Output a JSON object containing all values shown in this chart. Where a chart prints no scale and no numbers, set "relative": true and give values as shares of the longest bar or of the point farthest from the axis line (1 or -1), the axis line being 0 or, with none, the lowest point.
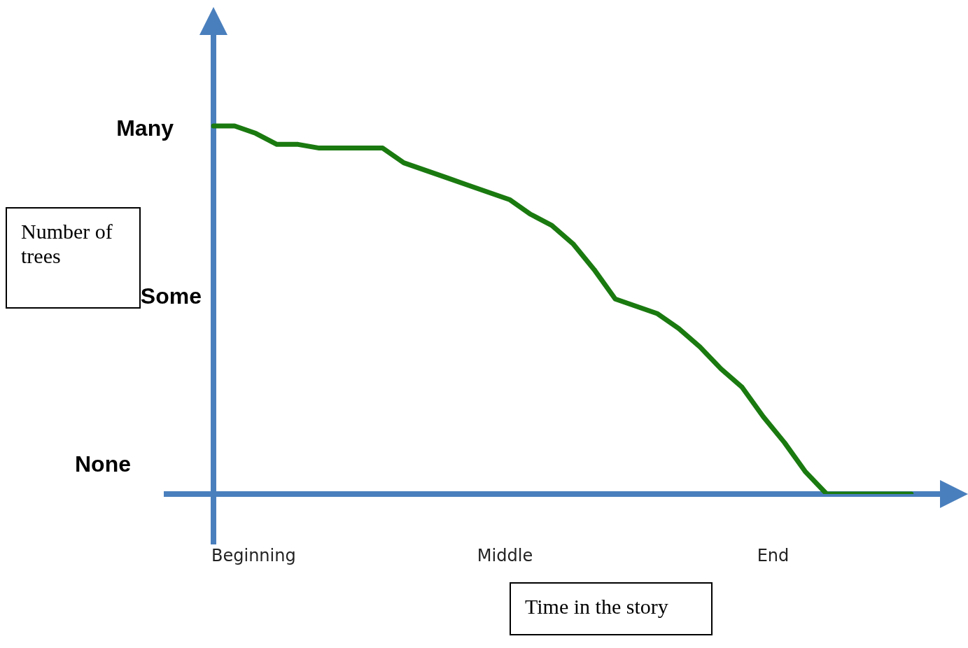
{
  "chart_data": {
    "type": "line",
    "xlabel": "Time in the story",
    "ylabel": "Number of trees",
    "relative": true,
    "categories": [
      null,
      null,
      null,
      null,
      null,
      null,
      null,
      null,
      null,
      null,
      null,
      null,
      null,
      null,
      null,
      null,
      null,
      null,
      null,
      null,
      null,
      null,
      null,
      null,
      null,
      null,
      null,
      null,
      null,
      null,
      null,
      null,
      null,
      null
    ],
    "annotations": [
      "Many",
      "Some",
      "None",
      "Beginning",
      "Middle",
      "End"
    ],
    "marker": "none",
    "line_style": "solid",
    "series": [
      {
        "color": "#1a7a10",
        "values": [
          1,
          1,
          0.98,
          0.95,
          0.95,
          0.94,
          0.94,
          0.94,
          0.94,
          0.9,
          0.88,
          0.86,
          0.84,
          0.82,
          0.8,
          0.76,
          0.73,
          0.68,
          0.61,
          0.53,
          0.51,
          0.49,
          0.45,
          0.4,
          0.34,
          0.29,
          0.21,
          0.14,
          0.06,
          0,
          0,
          0,
          0,
          0
        ]
      }
    ]
  }
}
